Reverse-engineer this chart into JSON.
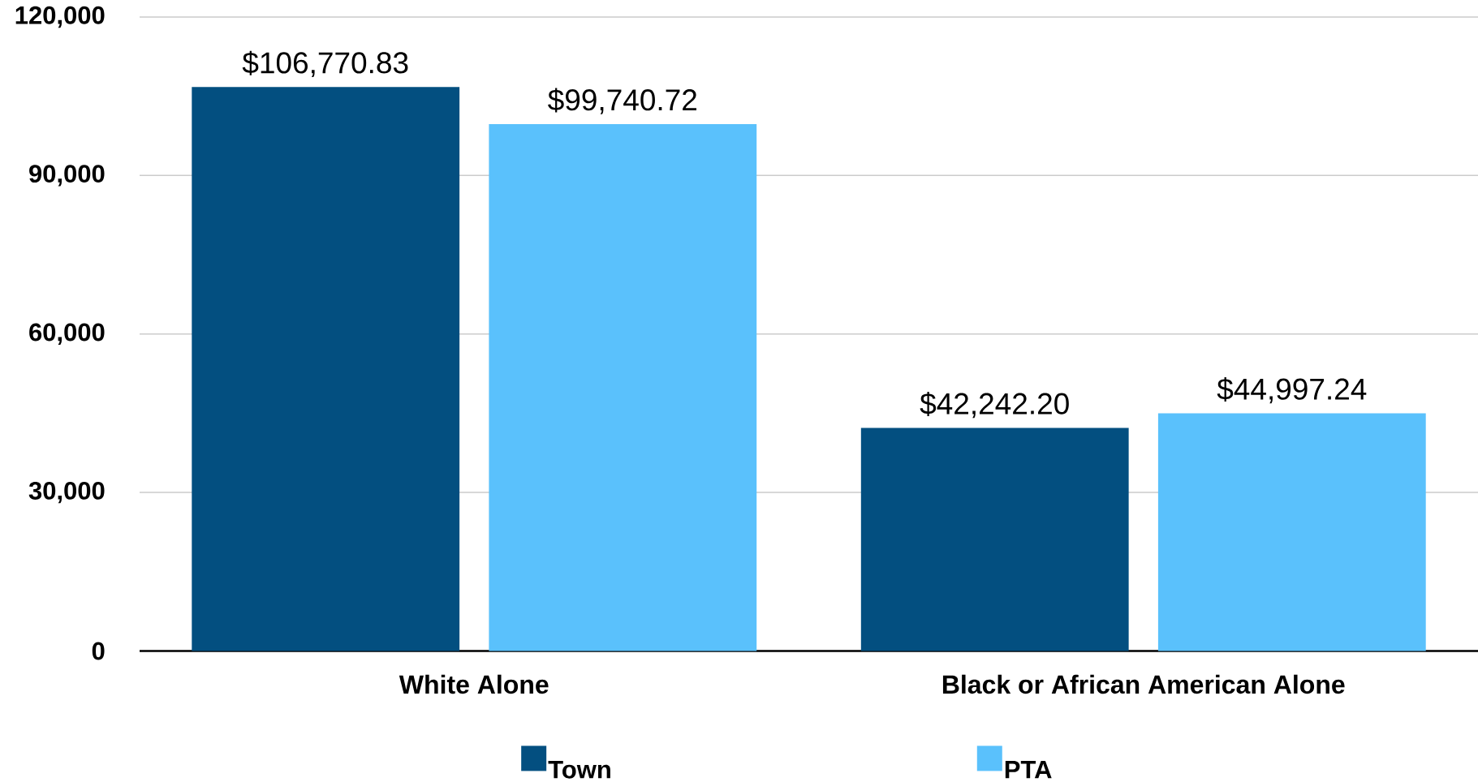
{
  "chart_data": {
    "type": "bar",
    "categories": [
      "White Alone",
      "Black or African American Alone"
    ],
    "series": [
      {
        "name": "Town",
        "color": "#034f80",
        "values": [
          106770.83,
          42242.2
        ],
        "value_labels": [
          "$106,770.83",
          "$42,242.20"
        ]
      },
      {
        "name": "PTA",
        "color": "#5ac1fc",
        "values": [
          99740.72,
          44997.24
        ],
        "value_labels": [
          "$99,740.72",
          "$44,997.24"
        ]
      }
    ],
    "ylim": [
      0,
      120000
    ],
    "yticks": [
      0,
      {
        "value": 30000,
        "label": "30,000"
      },
      {
        "value": 60000,
        "label": "60,000"
      },
      {
        "value": 90000,
        "label": "90,000"
      },
      {
        "value": 120000,
        "label": "120,000"
      }
    ],
    "grid": "y",
    "legend": "bottom"
  }
}
